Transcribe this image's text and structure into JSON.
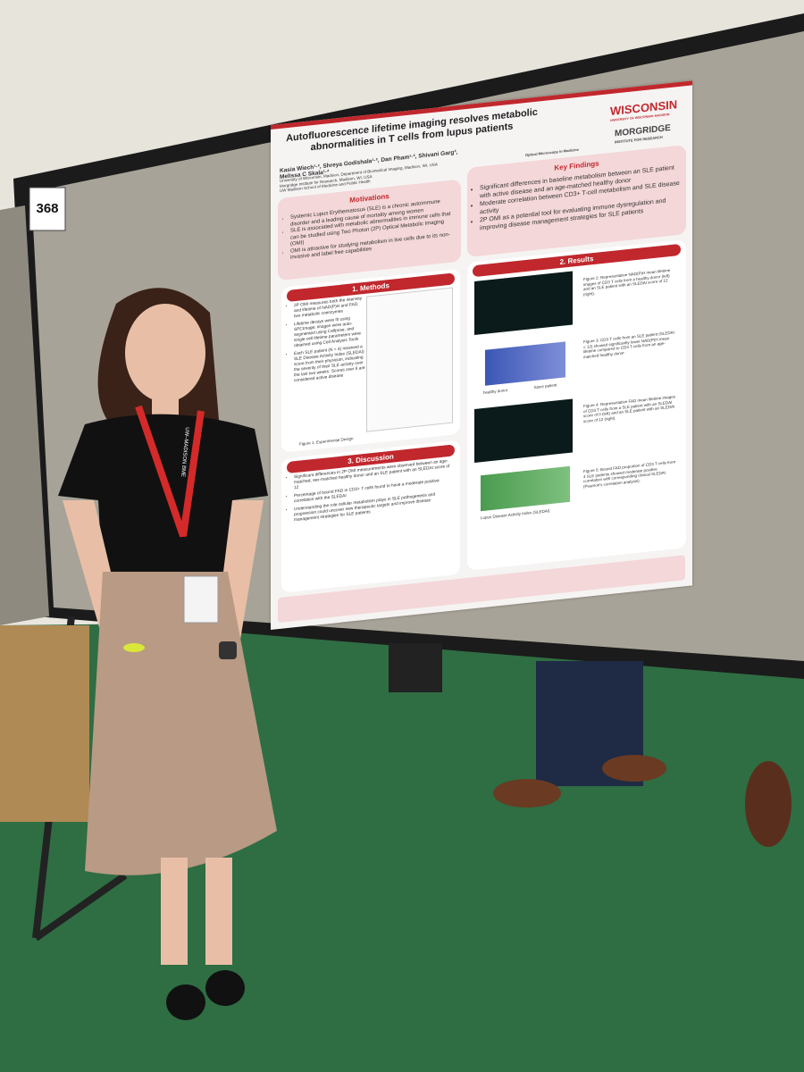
{
  "board_number": "368",
  "poster": {
    "title": "Autofluorescence lifetime imaging resolves metabolic abnormalities in T cells from lupus patients",
    "authors": "Kasia Wiech¹·², Shreya Godishala¹·², Dan Pham¹·², Shivani Garg³, Melissa C Skala¹·²",
    "affiliations": [
      "University of Wisconsin, Madison, Department of Biomedical Imaging, Madison, WI, USA",
      "Morgridge Institute for Research, Madison, WI, USA",
      "UW Madison School of Medicine and Public Health"
    ],
    "logos": {
      "wisconsin": "WISCONSIN",
      "wisconsin_sub": "UNIVERSITY OF WISCONSIN–MADISON",
      "morgridge": "MORGRIDGE",
      "morgridge_sub": "INSTITUTE FOR RESEARCH",
      "omim": "Optical Microscopy in Medicine"
    },
    "motivations": {
      "heading": "Motivations",
      "bullets": [
        "Systemic Lupus Erythematosus (SLE) is a chronic autoimmune disorder and a leading cause of mortality among women",
        "SLE is associated with metabolic abnormalities in immune cells that can be studied using Two Photon (2P) Optical Metabolic Imaging (OMI)",
        "OMI is attractive for studying metabolism in live cells due to its non-invasive and label free capabilities"
      ]
    },
    "key_findings": {
      "heading": "Key Findings",
      "bullets": [
        "Significant differences in baseline metabolism between an SLE patient with active disease and an age-matched healthy donor",
        "Moderate correlation between CD3+ T-cell metabolism and SLE disease activity",
        "2P OMI as a potential tool for evaluating immune dysregulation and improving disease management strategies for SLE patients"
      ]
    },
    "methods": {
      "heading": "1. Methods",
      "bullets": [
        "2P OMI measures both the intensity and lifetime of NAD(P)H and FAD, two metabolic coenzymes",
        "Lifetime decays were fit using SPCImage; images were auto-segmented using Cellpose, and single cell lifetime parameters were obtained using Cell Analysis Tools",
        "Each SLE patient (N = 4) received a SLE Disease Activity Index (SLEDAI) score from their physician, indicating the severity of their SLE activity over the last two weeks. Scores over 6 are considered active disease"
      ],
      "figure_caption": "Figure 1: Experimental Design"
    },
    "results": {
      "heading": "2. Results",
      "figures": [
        "Figure 2: Representative NAD(P)H mean lifetime images of CD3 T cells from a healthy donor (left) and an SLE patient with an SLEDAI score of 12 (right).",
        "Figure 3: CD3 T cells from an SLE patient (SLEDAI = 12) showed significantly lower NAD(P)H mean lifetime compared to CD3 T cells from an age-matched healthy donor",
        "Figure 4: Representative FAD mean lifetime images of CD3 T cells from a SLE patient with an SLEDAI score of 0 (left) and an SLE patient with an SLEDAI score of 12 (right).",
        "Figure 5: Bound FAD proportion of CD3 T cells from 4 SLE patients showed moderate positive correlation with corresponding clinical SLEDAI (Pearson's correlation analysis)."
      ],
      "violin_labels": [
        "healthy donor",
        "lupus patient"
      ],
      "x_axis": "Lupus Disease Activity Index (SLEDAI)"
    },
    "discussion": {
      "heading": "3. Discussion",
      "bullets": [
        "Significant differences in 2P OMI measurements were observed between an age-matched, sex-matched healthy donor and an SLE patient with an SLEDAI score of 12",
        "Percentage of bound FAD in CD3+ T cells found to have a moderate positive correlation with the SLEDAI",
        "Understanding the role cellular metabolism plays in SLE pathogenesis and progression could uncover new therapeutic targets and improve disease management strategies for SLE patients"
      ]
    }
  },
  "lanyard": "UW–MADISON BME"
}
